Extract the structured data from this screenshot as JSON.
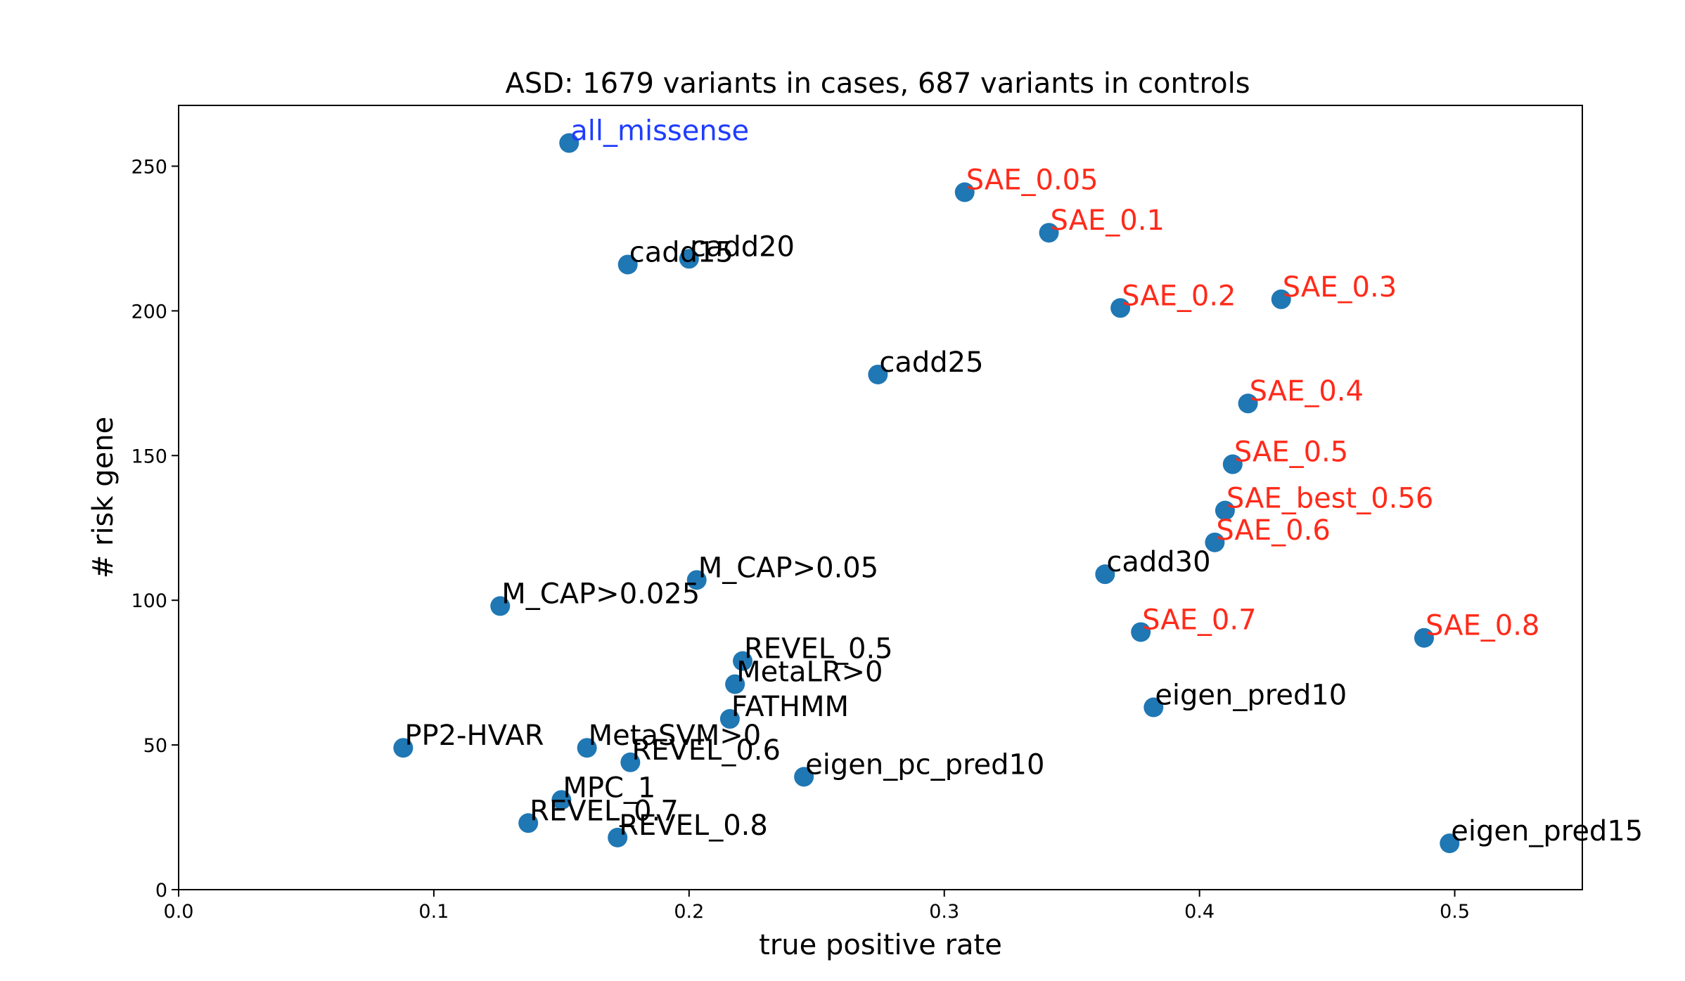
{
  "chart_data": {
    "type": "scatter",
    "title": "ASD: 1679 variants in cases, 687 variants in controls",
    "xlabel": "true positive rate",
    "ylabel": "# risk gene",
    "xlim": [
      0.0,
      0.55
    ],
    "ylim": [
      0,
      271
    ],
    "xticks": [
      "0.0",
      "0.1",
      "0.2",
      "0.3",
      "0.4",
      "0.5"
    ],
    "yticks": [
      "0",
      "50",
      "100",
      "150",
      "200",
      "250"
    ],
    "grid": false,
    "marker_color": "#1f77b4",
    "label_colors": {
      "default": "#000000",
      "baseline": "#1f3cff",
      "sae": "#ff2a1a"
    },
    "points": [
      {
        "label": "all_missense",
        "x": 0.153,
        "y": 258,
        "group": "baseline"
      },
      {
        "label": "SAE_0.05",
        "x": 0.308,
        "y": 241,
        "group": "sae"
      },
      {
        "label": "SAE_0.1",
        "x": 0.341,
        "y": 227,
        "group": "sae"
      },
      {
        "label": "cadd15",
        "x": 0.176,
        "y": 216,
        "group": "default"
      },
      {
        "label": "cadd20",
        "x": 0.2,
        "y": 218,
        "group": "default"
      },
      {
        "label": "SAE_0.2",
        "x": 0.369,
        "y": 201,
        "group": "sae"
      },
      {
        "label": "SAE_0.3",
        "x": 0.432,
        "y": 204,
        "group": "sae"
      },
      {
        "label": "cadd25",
        "x": 0.274,
        "y": 178,
        "group": "default"
      },
      {
        "label": "SAE_0.4",
        "x": 0.419,
        "y": 168,
        "group": "sae"
      },
      {
        "label": "SAE_0.5",
        "x": 0.413,
        "y": 147,
        "group": "sae"
      },
      {
        "label": "SAE_best_0.56",
        "x": 0.41,
        "y": 131,
        "group": "sae"
      },
      {
        "label": "SAE_0.6",
        "x": 0.406,
        "y": 120,
        "group": "sae"
      },
      {
        "label": "cadd30",
        "x": 0.363,
        "y": 109,
        "group": "default"
      },
      {
        "label": "M_CAP>0.05",
        "x": 0.203,
        "y": 107,
        "group": "default"
      },
      {
        "label": "M_CAP>0.025",
        "x": 0.126,
        "y": 98,
        "group": "default"
      },
      {
        "label": "SAE_0.7",
        "x": 0.377,
        "y": 89,
        "group": "sae"
      },
      {
        "label": "SAE_0.8",
        "x": 0.488,
        "y": 87,
        "group": "sae"
      },
      {
        "label": "REVEL_0.5",
        "x": 0.221,
        "y": 79,
        "group": "default"
      },
      {
        "label": "MetaLR>0",
        "x": 0.218,
        "y": 71,
        "group": "default"
      },
      {
        "label": "eigen_pred10",
        "x": 0.382,
        "y": 63,
        "group": "default"
      },
      {
        "label": "FATHMM",
        "x": 0.216,
        "y": 59,
        "group": "default"
      },
      {
        "label": "PP2-HVAR",
        "x": 0.088,
        "y": 49,
        "group": "default"
      },
      {
        "label": "MetaSVM>0",
        "x": 0.16,
        "y": 49,
        "group": "default"
      },
      {
        "label": "REVEL_0.6",
        "x": 0.177,
        "y": 44,
        "group": "default"
      },
      {
        "label": "eigen_pc_pred10",
        "x": 0.245,
        "y": 39,
        "group": "default"
      },
      {
        "label": "MPC_1",
        "x": 0.15,
        "y": 31,
        "group": "default"
      },
      {
        "label": "REVEL_0.7",
        "x": 0.137,
        "y": 23,
        "group": "default"
      },
      {
        "label": "REVEL_0.8",
        "x": 0.172,
        "y": 18,
        "group": "default"
      },
      {
        "label": "eigen_pred15",
        "x": 0.498,
        "y": 16,
        "group": "default"
      }
    ]
  }
}
